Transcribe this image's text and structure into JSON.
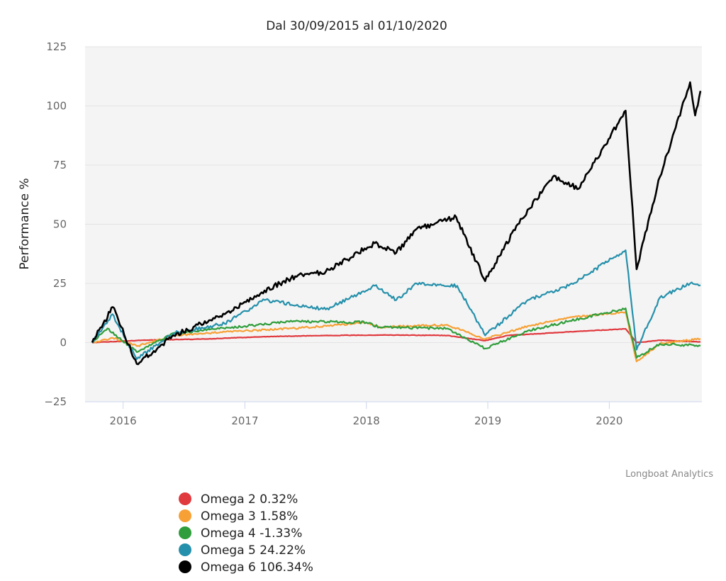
{
  "chart_data": {
    "type": "line",
    "title": "Dal 30/09/2015 al 01/10/2020",
    "ylabel": "Performance %",
    "xlabel": "",
    "credit": "Longboat Analytics",
    "xlim": [
      "2015-09-30",
      "2020-10-01"
    ],
    "ylim": [
      -25,
      125
    ],
    "yticks": [
      -25,
      0,
      25,
      50,
      75,
      100,
      125
    ],
    "xticks": [
      {
        "label": "2016",
        "date": "2016-01-01"
      },
      {
        "label": "2017",
        "date": "2017-01-01"
      },
      {
        "label": "2018",
        "date": "2018-01-01"
      },
      {
        "label": "2019",
        "date": "2019-01-01"
      },
      {
        "label": "2020",
        "date": "2020-01-01"
      }
    ],
    "grid": true,
    "legend_position": "bottom-left",
    "series": [
      {
        "name": "Omega 2 0.32%",
        "color": "#e0393e",
        "points": [
          [
            "2015-09-30",
            0.0
          ],
          [
            "2016-03-01",
            1.0
          ],
          [
            "2016-09-01",
            1.5
          ],
          [
            "2017-03-01",
            2.5
          ],
          [
            "2017-09-01",
            3.0
          ],
          [
            "2018-03-01",
            3.2
          ],
          [
            "2018-09-01",
            3.0
          ],
          [
            "2018-12-24",
            0.8
          ],
          [
            "2019-03-01",
            3.0
          ],
          [
            "2019-09-01",
            4.5
          ],
          [
            "2020-02-19",
            5.8
          ],
          [
            "2020-03-23",
            0.0
          ],
          [
            "2020-06-01",
            1.0
          ],
          [
            "2020-10-01",
            0.32
          ]
        ]
      },
      {
        "name": "Omega 3 1.58%",
        "color": "#f7a035",
        "points": [
          [
            "2015-09-30",
            0.0
          ],
          [
            "2015-12-01",
            2.0
          ],
          [
            "2016-02-11",
            -1.5
          ],
          [
            "2016-06-01",
            3.0
          ],
          [
            "2017-01-01",
            5.0
          ],
          [
            "2017-06-01",
            6.0
          ],
          [
            "2018-01-01",
            8.5
          ],
          [
            "2018-02-09",
            6.5
          ],
          [
            "2018-09-01",
            7.5
          ],
          [
            "2018-12-24",
            1.5
          ],
          [
            "2019-05-01",
            7.0
          ],
          [
            "2019-09-01",
            10.5
          ],
          [
            "2020-02-19",
            13.0
          ],
          [
            "2020-03-23",
            -8.0
          ],
          [
            "2020-06-01",
            -0.5
          ],
          [
            "2020-10-01",
            1.58
          ]
        ]
      },
      {
        "name": "Omega 4 -1.33%",
        "color": "#2f9d3b",
        "points": [
          [
            "2015-09-30",
            0.0
          ],
          [
            "2015-11-15",
            6.0
          ],
          [
            "2016-02-11",
            -4.0
          ],
          [
            "2016-06-01",
            4.0
          ],
          [
            "2017-01-01",
            7.0
          ],
          [
            "2017-06-01",
            9.0
          ],
          [
            "2018-01-01",
            8.5
          ],
          [
            "2018-02-09",
            6.5
          ],
          [
            "2018-09-01",
            6.0
          ],
          [
            "2018-12-24",
            -2.5
          ],
          [
            "2019-05-01",
            5.0
          ],
          [
            "2019-09-01",
            9.0
          ],
          [
            "2020-02-19",
            14.5
          ],
          [
            "2020-03-23",
            -6.5
          ],
          [
            "2020-06-01",
            -0.5
          ],
          [
            "2020-10-01",
            -1.33
          ]
        ]
      },
      {
        "name": "Omega 5 24.22%",
        "color": "#2590ab",
        "points": [
          [
            "2015-09-30",
            0.0
          ],
          [
            "2015-11-30",
            12.0
          ],
          [
            "2016-02-11",
            -7.0
          ],
          [
            "2016-06-01",
            4.0
          ],
          [
            "2016-11-01",
            8.0
          ],
          [
            "2017-03-01",
            18.0
          ],
          [
            "2017-09-01",
            14.0
          ],
          [
            "2018-01-26",
            24.0
          ],
          [
            "2018-04-01",
            18.0
          ],
          [
            "2018-06-01",
            25.0
          ],
          [
            "2018-10-01",
            24.0
          ],
          [
            "2018-12-24",
            3.0
          ],
          [
            "2019-05-01",
            18.0
          ],
          [
            "2019-09-01",
            24.0
          ],
          [
            "2020-02-19",
            39.0
          ],
          [
            "2020-03-23",
            -3.0
          ],
          [
            "2020-06-01",
            19.0
          ],
          [
            "2020-08-31",
            25.0
          ],
          [
            "2020-10-01",
            24.22
          ]
        ]
      },
      {
        "name": "Omega 6 106.34%",
        "color": "#000000",
        "points": [
          [
            "2015-09-30",
            0.0
          ],
          [
            "2015-12-01",
            15.0
          ],
          [
            "2016-02-11",
            -9.0
          ],
          [
            "2016-06-01",
            3.0
          ],
          [
            "2016-11-01",
            12.0
          ],
          [
            "2017-03-01",
            22.0
          ],
          [
            "2017-06-01",
            28.0
          ],
          [
            "2017-09-01",
            30.0
          ],
          [
            "2018-01-26",
            42.0
          ],
          [
            "2018-04-01",
            38.0
          ],
          [
            "2018-06-01",
            48.0
          ],
          [
            "2018-09-28",
            53.0
          ],
          [
            "2018-12-24",
            26.0
          ],
          [
            "2019-04-01",
            50.0
          ],
          [
            "2019-07-15",
            70.0
          ],
          [
            "2019-10-01",
            65.0
          ],
          [
            "2020-02-19",
            98.0
          ],
          [
            "2020-03-23",
            31.0
          ],
          [
            "2020-06-01",
            70.0
          ],
          [
            "2020-08-31",
            110.0
          ],
          [
            "2020-09-15",
            96.0
          ],
          [
            "2020-10-01",
            106.34
          ]
        ]
      }
    ]
  }
}
